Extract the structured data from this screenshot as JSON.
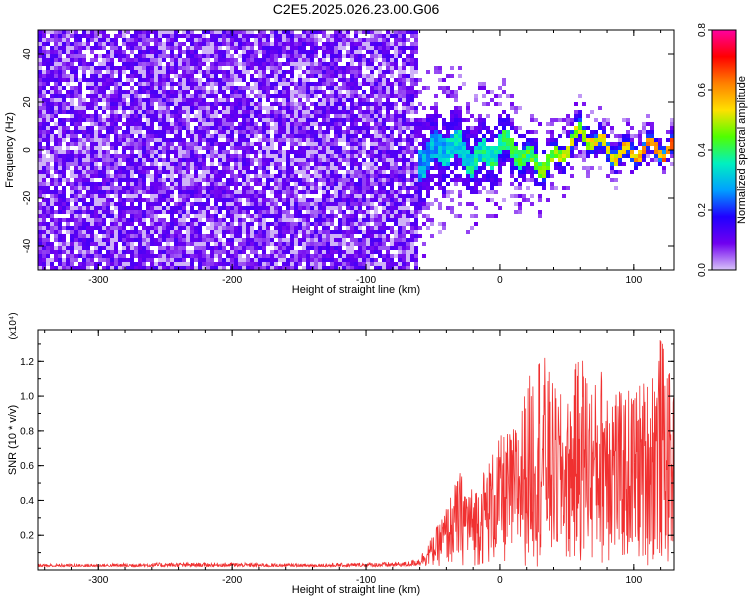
{
  "title": "C2E5.2025.026.23.00.G06",
  "chart_data": [
    {
      "type": "heatmap",
      "title": "C2E5.2025.026.23.00.G06",
      "xlabel": "Height of straight line (km)",
      "ylabel": "Frequency (Hz)",
      "xlim": [
        -345,
        130
      ],
      "ylim": [
        -50,
        50
      ],
      "xticks": [
        -300,
        -200,
        -100,
        0,
        100
      ],
      "yticks": [
        -40,
        -20,
        0,
        20,
        40
      ],
      "grid": false,
      "colorbar": {
        "label": "Normalized spectral amplitude",
        "range": [
          0,
          0.8
        ],
        "ticks": [
          "0.0",
          "0.2",
          "0.4",
          "0.6",
          "0.8"
        ],
        "colormap": "rainbow",
        "stops": [
          "#d8c4f8",
          "#7000f0",
          "#2000ff",
          "#00a0ff",
          "#00f0c0",
          "#50ff00",
          "#ffe000",
          "#ff8000",
          "#ff0000",
          "#ff00a0"
        ]
      },
      "noise_cutoff_x": -62,
      "description_points": {
        "x": [
          -60,
          -40,
          -20,
          0,
          20,
          40,
          60,
          80,
          100,
          120,
          130
        ],
        "signal_center_hz": [
          -2,
          0,
          -3,
          2,
          -5,
          -3,
          5,
          2,
          -2,
          0,
          2
        ],
        "signal_halfwidth_hz": [
          18,
          16,
          14,
          12,
          10,
          8,
          7,
          6,
          5,
          5,
          5
        ]
      }
    },
    {
      "type": "line",
      "xlabel": "Height of straight line (km)",
      "ylabel": "SNR (10 * v/v)",
      "yscale_label": "(x10⁴)",
      "xlim": [
        -345,
        130
      ],
      "ylim": [
        0,
        1.38
      ],
      "xticks": [
        -300,
        -200,
        -100,
        0,
        100
      ],
      "yticks": [
        "0.2",
        "0.4",
        "0.6",
        "0.8",
        "1.0",
        "1.2"
      ],
      "series": [
        {
          "color": "#f03030",
          "x": [
            -345,
            -300,
            -250,
            -200,
            -150,
            -100,
            -70,
            -60,
            -50,
            -40,
            -30,
            -20,
            -10,
            0,
            10,
            20,
            30,
            40,
            50,
            60,
            70,
            80,
            90,
            100,
            110,
            120,
            130
          ],
          "y": [
            0.03,
            0.03,
            0.035,
            0.035,
            0.03,
            0.035,
            0.04,
            0.06,
            0.18,
            0.35,
            0.55,
            0.45,
            0.6,
            0.75,
            0.8,
            1.05,
            1.3,
            1.05,
            0.95,
            1.28,
            1.05,
            1.25,
            1.0,
            1.05,
            1.1,
            1.35,
            1.0
          ]
        }
      ]
    }
  ]
}
